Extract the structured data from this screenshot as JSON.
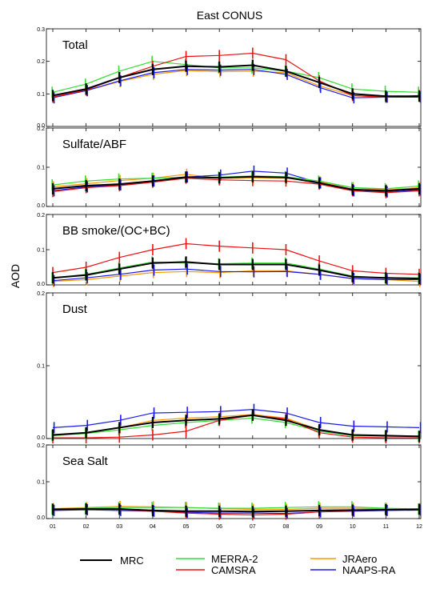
{
  "chart_data": {
    "type": "line",
    "title": "East CONUS",
    "ylabel": "AOD",
    "xlabel": "",
    "months": [
      "01",
      "02",
      "03",
      "04",
      "05",
      "06",
      "07",
      "08",
      "09",
      "10",
      "11",
      "12"
    ],
    "legend": [
      {
        "name": "MRC",
        "color": "#000000"
      },
      {
        "name": "MERRA-2",
        "color": "#33dd33"
      },
      {
        "name": "CAMSRA",
        "color": "#ee1111"
      },
      {
        "name": "JRAero",
        "color": "#ff9900"
      },
      {
        "name": "NAAPS-RA",
        "color": "#1a1aee"
      }
    ],
    "panels": [
      {
        "name": "Total",
        "ylim": [
          0,
          0.3
        ],
        "ytick_labels": [
          "0.0",
          "0.1",
          "0.2",
          "0.3"
        ],
        "series": [
          {
            "name": "MRC",
            "values": [
              0.095,
              0.115,
              0.15,
              0.175,
              0.185,
              0.183,
              0.188,
              0.17,
              0.135,
              0.1,
              0.093,
              0.093
            ]
          },
          {
            "name": "MERRA-2",
            "values": [
              0.105,
              0.13,
              0.17,
              0.2,
              0.19,
              0.18,
              0.18,
              0.17,
              0.15,
              0.115,
              0.108,
              0.105
            ]
          },
          {
            "name": "CAMSRA",
            "values": [
              0.09,
              0.112,
              0.15,
              0.185,
              0.215,
              0.218,
              0.225,
              0.205,
              0.14,
              0.095,
              0.09,
              0.095
            ]
          },
          {
            "name": "JRAero",
            "values": [
              0.092,
              0.11,
              0.138,
              0.16,
              0.172,
              0.168,
              0.17,
              0.165,
              0.125,
              0.095,
              0.09,
              0.092
            ]
          },
          {
            "name": "NAAPS-RA",
            "values": [
              0.088,
              0.11,
              0.14,
              0.165,
              0.175,
              0.173,
              0.175,
              0.16,
              0.12,
              0.088,
              0.09,
              0.09
            ]
          }
        ]
      },
      {
        "name": "Sulfate/ABF",
        "ylim": [
          0,
          0.2
        ],
        "ytick_labels": [
          "0.0",
          "0.1",
          "0.2"
        ],
        "series": [
          {
            "name": "MRC",
            "values": [
              0.045,
              0.053,
              0.057,
              0.065,
              0.075,
              0.073,
              0.076,
              0.074,
              0.06,
              0.043,
              0.04,
              0.045
            ]
          },
          {
            "name": "MERRA-2",
            "values": [
              0.055,
              0.065,
              0.07,
              0.072,
              0.075,
              0.075,
              0.078,
              0.076,
              0.065,
              0.048,
              0.045,
              0.052
            ]
          },
          {
            "name": "CAMSRA",
            "values": [
              0.038,
              0.048,
              0.053,
              0.062,
              0.072,
              0.068,
              0.066,
              0.065,
              0.057,
              0.04,
              0.035,
              0.04
            ]
          },
          {
            "name": "JRAero",
            "values": [
              0.05,
              0.058,
              0.066,
              0.072,
              0.082,
              0.072,
              0.073,
              0.072,
              0.063,
              0.048,
              0.042,
              0.048
            ]
          },
          {
            "name": "NAAPS-RA",
            "values": [
              0.04,
              0.05,
              0.055,
              0.065,
              0.075,
              0.08,
              0.09,
              0.085,
              0.06,
              0.04,
              0.037,
              0.042
            ]
          }
        ]
      },
      {
        "name": "BB smoke/(OC+BC)",
        "ylim": [
          0,
          0.2
        ],
        "ytick_labels": [
          "0.0",
          "0.1",
          "0.2"
        ],
        "series": [
          {
            "name": "MRC",
            "values": [
              0.02,
              0.028,
              0.045,
              0.062,
              0.065,
              0.058,
              0.058,
              0.058,
              0.042,
              0.023,
              0.02,
              0.018
            ]
          },
          {
            "name": "MERRA-2",
            "values": [
              0.02,
              0.03,
              0.048,
              0.065,
              0.062,
              0.06,
              0.062,
              0.062,
              0.045,
              0.025,
              0.02,
              0.02
            ]
          },
          {
            "name": "CAMSRA",
            "values": [
              0.035,
              0.05,
              0.078,
              0.1,
              0.117,
              0.11,
              0.105,
              0.1,
              0.068,
              0.04,
              0.033,
              0.03
            ]
          },
          {
            "name": "JRAero",
            "values": [
              0.01,
              0.015,
              0.025,
              0.035,
              0.038,
              0.035,
              0.04,
              0.04,
              0.03,
              0.018,
              0.015,
              0.01
            ]
          },
          {
            "name": "NAAPS-RA",
            "values": [
              0.012,
              0.02,
              0.03,
              0.042,
              0.045,
              0.038,
              0.037,
              0.038,
              0.03,
              0.018,
              0.015,
              0.015
            ]
          }
        ]
      },
      {
        "name": "Dust",
        "ylim": [
          0,
          0.2
        ],
        "ytick_labels": [
          "0.0",
          "0.1",
          "0.2"
        ],
        "series": [
          {
            "name": "MRC",
            "values": [
              0.005,
              0.008,
              0.015,
              0.022,
              0.025,
              0.027,
              0.032,
              0.025,
              0.012,
              0.005,
              0.004,
              0.003
            ]
          },
          {
            "name": "MERRA-2",
            "values": [
              0.004,
              0.007,
              0.012,
              0.018,
              0.022,
              0.025,
              0.028,
              0.022,
              0.01,
              0.004,
              0.003,
              0.003
            ]
          },
          {
            "name": "CAMSRA",
            "values": [
              0.001,
              0.001,
              0.002,
              0.005,
              0.01,
              0.025,
              0.032,
              0.027,
              0.008,
              0.002,
              0.001,
              0.001
            ]
          },
          {
            "name": "JRAero",
            "values": [
              0.005,
              0.008,
              0.015,
              0.025,
              0.028,
              0.03,
              0.033,
              0.028,
              0.012,
              0.005,
              0.004,
              0.003
            ]
          },
          {
            "name": "NAAPS-RA",
            "values": [
              0.015,
              0.018,
              0.025,
              0.035,
              0.036,
              0.037,
              0.04,
              0.035,
              0.022,
              0.017,
              0.016,
              0.015
            ]
          }
        ]
      },
      {
        "name": "Sea Salt",
        "ylim": [
          0,
          0.2
        ],
        "ytick_labels": [
          "0.0",
          "0.1",
          "0.2"
        ],
        "series": [
          {
            "name": "MRC",
            "values": [
              0.025,
              0.026,
              0.026,
              0.022,
              0.02,
              0.02,
              0.019,
              0.02,
              0.022,
              0.023,
              0.024,
              0.025
            ]
          },
          {
            "name": "MERRA-2",
            "values": [
              0.026,
              0.028,
              0.03,
              0.03,
              0.03,
              0.028,
              0.028,
              0.03,
              0.032,
              0.032,
              0.028,
              0.026
            ]
          },
          {
            "name": "CAMSRA",
            "values": [
              0.024,
              0.025,
              0.024,
              0.02,
              0.015,
              0.012,
              0.01,
              0.012,
              0.018,
              0.022,
              0.024,
              0.025
            ]
          },
          {
            "name": "JRAero",
            "values": [
              0.027,
              0.03,
              0.033,
              0.032,
              0.03,
              0.027,
              0.025,
              0.025,
              0.028,
              0.028,
              0.027,
              0.027
            ]
          },
          {
            "name": "NAAPS-RA",
            "values": [
              0.022,
              0.024,
              0.022,
              0.02,
              0.017,
              0.015,
              0.015,
              0.014,
              0.018,
              0.02,
              0.022,
              0.023
            ]
          }
        ]
      }
    ]
  }
}
